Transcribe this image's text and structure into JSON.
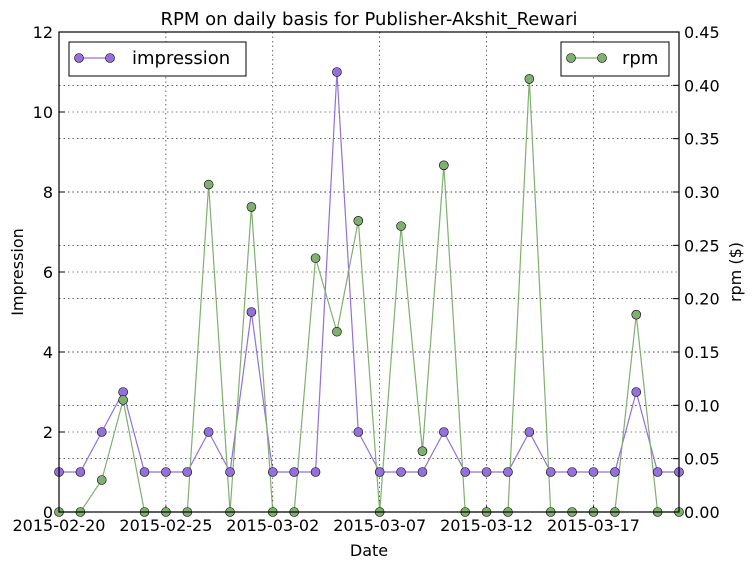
{
  "chart_data": {
    "type": "line",
    "title": "RPM on daily basis for Publisher-Akshit_Rewari",
    "xlabel": "Date",
    "ylabel": "Impression",
    "y2label": "rpm ($)",
    "x_range": [
      "2015-02-20",
      "2015-03-21"
    ],
    "x_ticks": [
      "2015-02-20",
      "2015-02-25",
      "2015-03-02",
      "2015-03-07",
      "2015-03-12",
      "2015-03-17"
    ],
    "ylim": [
      0,
      12
    ],
    "y_ticks": [
      "0",
      "2",
      "4",
      "6",
      "8",
      "10",
      "12"
    ],
    "y2lim": [
      0,
      0.45
    ],
    "y2_ticks": [
      "0.00",
      "0.05",
      "0.10",
      "0.15",
      "0.20",
      "0.25",
      "0.30",
      "0.35",
      "0.40",
      "0.45"
    ],
    "grid": true,
    "dates": [
      "2015-02-20",
      "2015-02-21",
      "2015-02-22",
      "2015-02-23",
      "2015-02-24",
      "2015-02-25",
      "2015-02-26",
      "2015-02-27",
      "2015-02-28",
      "2015-03-01",
      "2015-03-02",
      "2015-03-03",
      "2015-03-04",
      "2015-03-05",
      "2015-03-06",
      "2015-03-07",
      "2015-03-08",
      "2015-03-09",
      "2015-03-10",
      "2015-03-11",
      "2015-03-12",
      "2015-03-13",
      "2015-03-14",
      "2015-03-15",
      "2015-03-16",
      "2015-03-17",
      "2015-03-18",
      "2015-03-19",
      "2015-03-20",
      "2015-03-21"
    ],
    "series": [
      {
        "name": "impression",
        "axis": "left",
        "color": "#9370db",
        "legend": "top-left",
        "values": [
          1,
          1,
          2,
          3,
          1,
          1,
          1,
          2,
          1,
          5,
          1,
          1,
          1,
          11,
          2,
          1,
          1,
          1,
          2,
          1,
          1,
          1,
          2,
          1,
          1,
          1,
          1,
          3,
          1,
          1
        ]
      },
      {
        "name": "rpm",
        "axis": "right",
        "color": "#7fb06f",
        "legend": "top-right",
        "values": [
          0,
          0,
          0.03,
          0.105,
          0,
          0,
          0,
          0.307,
          0,
          0.286,
          0,
          0,
          0.238,
          0.169,
          0.273,
          0,
          0.268,
          0.057,
          0.325,
          0,
          0,
          0,
          0.406,
          0,
          0,
          0,
          0,
          0.185,
          0,
          0
        ]
      }
    ]
  }
}
